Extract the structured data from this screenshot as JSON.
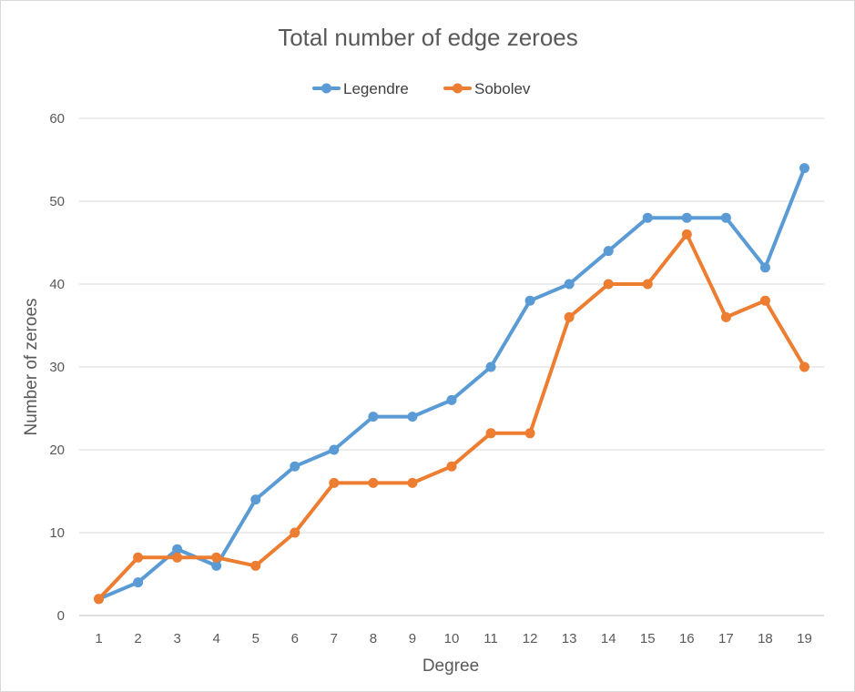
{
  "chart_data": {
    "type": "line",
    "title": "Total number of edge zeroes",
    "xlabel": "Degree",
    "ylabel": "Number of zeroes",
    "categories": [
      "1",
      "2",
      "3",
      "4",
      "5",
      "6",
      "7",
      "8",
      "9",
      "10",
      "11",
      "12",
      "13",
      "14",
      "15",
      "16",
      "17",
      "18",
      "19"
    ],
    "series": [
      {
        "name": "Legendre",
        "color": "#5b9bd5",
        "values": [
          2,
          4,
          8,
          6,
          14,
          18,
          20,
          24,
          24,
          26,
          30,
          38,
          40,
          44,
          48,
          48,
          48,
          42,
          54
        ]
      },
      {
        "name": "Sobolev",
        "color": "#ed7d31",
        "values": [
          2,
          7,
          7,
          7,
          6,
          10,
          16,
          16,
          16,
          18,
          22,
          22,
          36,
          40,
          40,
          46,
          36,
          38,
          30
        ]
      }
    ],
    "ylim": [
      0,
      60
    ],
    "yticks": [
      0,
      10,
      20,
      30,
      40,
      50,
      60
    ],
    "grid": true,
    "legend_position": "top"
  }
}
